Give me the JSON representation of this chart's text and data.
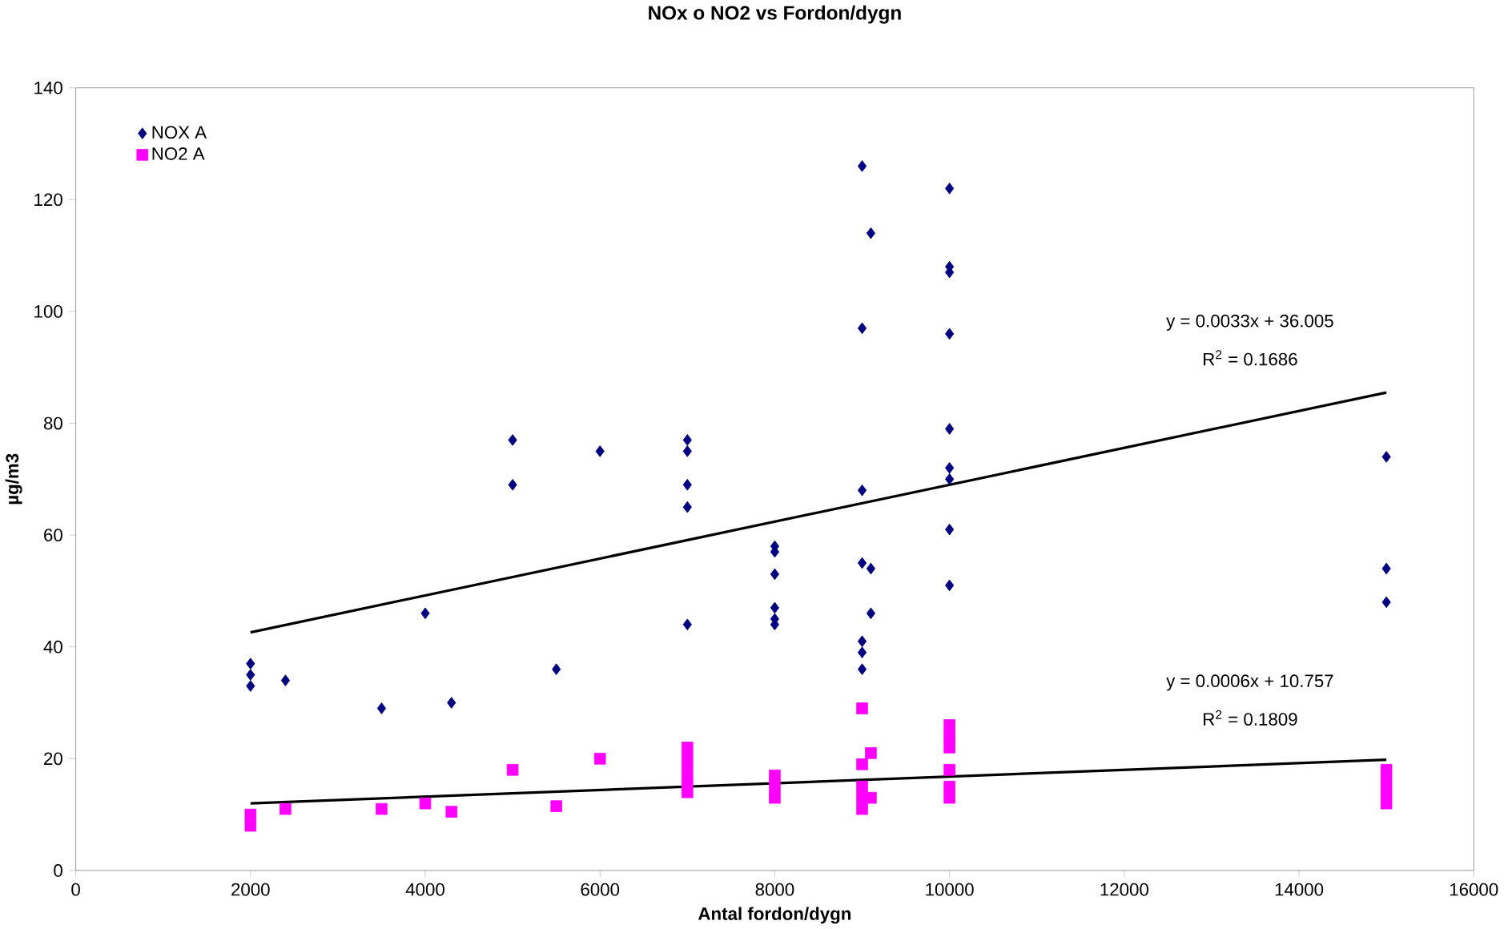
{
  "chart_data": {
    "type": "scatter",
    "title": "NOx o NO2 vs Fordon/dygn",
    "xlabel": "Antal fordon/dygn",
    "ylabel": "µg/m3",
    "xlim": [
      0,
      16000
    ],
    "xticks": [
      0,
      2000,
      4000,
      6000,
      8000,
      10000,
      12000,
      14000,
      16000
    ],
    "ylim": [
      0,
      140
    ],
    "yticks": [
      0,
      20,
      40,
      60,
      80,
      100,
      120,
      140
    ],
    "legend": "top left",
    "series": [
      {
        "name": "NOX A",
        "color": "#000080",
        "marker": "diamond",
        "x": [
          2000,
          2000,
          2000,
          2400,
          3500,
          4000,
          4300,
          5000,
          5000,
          5500,
          6000,
          7000,
          7000,
          7000,
          7000,
          7000,
          8000,
          8000,
          8000,
          8000,
          8000,
          8000,
          9000,
          9000,
          9000,
          9000,
          9000,
          9000,
          9000,
          9100,
          9100,
          9100,
          10000,
          10000,
          10000,
          10000,
          10000,
          10000,
          10000,
          10000,
          10000,
          15000,
          15000,
          15000
        ],
        "values": [
          37,
          35,
          33,
          34,
          29,
          46,
          30,
          77,
          69,
          36,
          75,
          77,
          75,
          69,
          65,
          44,
          58,
          57,
          53,
          47,
          45,
          44,
          126,
          97,
          68,
          55,
          41,
          39,
          36,
          114,
          54,
          46,
          122,
          108,
          107,
          96,
          79,
          72,
          70,
          61,
          51,
          74,
          54,
          48
        ]
      },
      {
        "name": "NO2 A",
        "color": "#ff00ff",
        "marker": "square",
        "x": [
          2000,
          2000,
          2400,
          3500,
          4000,
          4300,
          5000,
          5500,
          6000,
          7000,
          7000,
          7000,
          7000,
          7000,
          8000,
          8000,
          8000,
          9000,
          9000,
          9000,
          9000,
          9000,
          9100,
          9100,
          10000,
          10000,
          10000,
          10000,
          10000,
          10000,
          15000,
          15000,
          15000,
          15000
        ],
        "values": [
          10,
          8,
          11,
          11,
          12,
          10.5,
          18,
          11.5,
          20,
          22,
          20,
          18,
          16,
          14,
          17,
          15,
          13,
          29,
          19,
          15,
          13,
          11,
          21,
          13,
          26,
          24,
          22,
          18,
          15,
          13,
          18,
          16,
          14,
          12
        ]
      },
      {
        "type": "line",
        "color": "#000000",
        "marker": "none",
        "x": [
          2000,
          15000
        ],
        "values": [
          42.6,
          85.5
        ]
      },
      {
        "type": "line",
        "color": "#000000",
        "marker": "none",
        "x": [
          2000,
          15000
        ],
        "values": [
          12.0,
          19.8
        ]
      }
    ],
    "annotations": [
      "y = 0.0033x + 36.005",
      "R$^{2}$ = 0.1686",
      "y = 0.0006x + 10.757",
      "R$^{2}$ = 0.1809"
    ]
  }
}
